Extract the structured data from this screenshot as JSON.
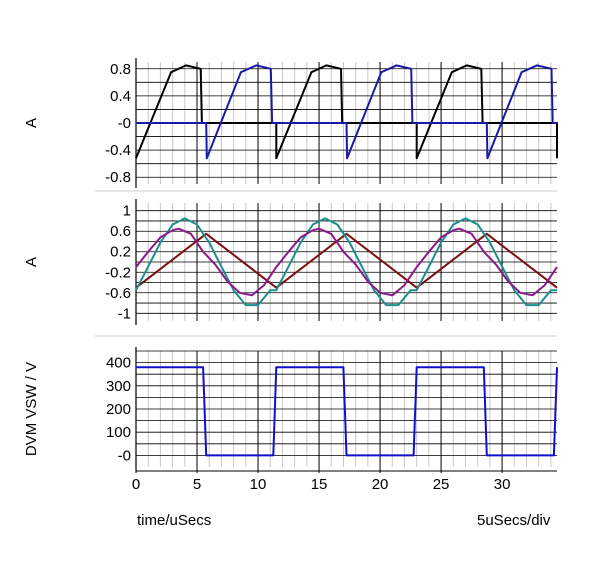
{
  "chart_data": {
    "type": "line",
    "x_axis": {
      "label": "time/uSecs",
      "units_per_div": "5uSecs/div",
      "range": [
        0,
        34.5
      ],
      "ticks": [
        0,
        5,
        10,
        15,
        20,
        25,
        30
      ],
      "tick_labels": [
        "0",
        "5",
        "10",
        "15",
        "20",
        "25",
        "30"
      ],
      "minor_grid_step": 1
    },
    "panels": [
      {
        "ylabel": "A",
        "ylim": [
          -0.9,
          0.9
        ],
        "yticks": [
          0.8,
          0.4,
          0,
          -0.4,
          -0.8
        ],
        "ytick_labels": [
          "0.8",
          "0.4",
          "-0",
          "-0.4",
          "-0.8"
        ],
        "grid_step": 0.2,
        "period": 11.5,
        "series": [
          {
            "color": "#000000",
            "kind": "switch_on",
            "values": [
              [
                0,
                -0.52
              ],
              [
                2.875,
                0.75
              ],
              [
                4.1,
                0.85
              ],
              [
                5.3,
                0.8
              ],
              [
                5.4,
                0.0
              ],
              [
                5.75,
                0.0
              ],
              [
                11.5,
                0.0
              ]
            ]
          },
          {
            "color": "#1a1aa8",
            "kind": "switch_off",
            "values": [
              [
                0,
                0.0
              ],
              [
                5.75,
                0.0
              ],
              [
                5.8,
                -0.52
              ],
              [
                8.6,
                0.75
              ],
              [
                9.85,
                0.85
              ],
              [
                11.05,
                0.8
              ],
              [
                11.15,
                0.0
              ],
              [
                11.5,
                0.0
              ]
            ]
          }
        ]
      },
      {
        "ylabel": "A",
        "ylim": [
          -1.15,
          1.15
        ],
        "yticks": [
          1,
          0.6,
          0.2,
          -0.2,
          -0.6,
          -1
        ],
        "ytick_labels": [
          "1",
          "0.6",
          "0.2",
          "-0.2",
          "-0.6",
          "-1"
        ],
        "grid_step": 0.2,
        "period": 11.5,
        "series": [
          {
            "color": "#7b1010",
            "kind": "triangle",
            "values": [
              [
                0,
                -0.5
              ],
              [
                5.75,
                0.55
              ],
              [
                11.5,
                -0.5
              ]
            ]
          },
          {
            "color": "#1a8f8c",
            "kind": "sine",
            "values": [
              [
                0,
                -0.55
              ],
              [
                1,
                -0.09
              ],
              [
                2,
                0.38
              ],
              [
                3,
                0.73
              ],
              [
                4,
                0.85
              ],
              [
                5,
                0.73
              ],
              [
                6,
                0.38
              ],
              [
                7,
                -0.09
              ],
              [
                8,
                -0.55
              ],
              [
                9,
                -0.84
              ],
              [
                10,
                -0.84
              ],
              [
                11,
                -0.55
              ],
              [
                11.5,
                -0.55
              ]
            ]
          },
          {
            "color": "#8a1a8a",
            "kind": "distorted",
            "values": [
              [
                0,
                -0.1
              ],
              [
                1,
                0.2
              ],
              [
                2,
                0.48
              ],
              [
                3,
                0.62
              ],
              [
                3.5,
                0.65
              ],
              [
                4.5,
                0.55
              ],
              [
                5.5,
                0.2
              ],
              [
                6.5,
                -0.05
              ],
              [
                7.5,
                -0.38
              ],
              [
                8.5,
                -0.6
              ],
              [
                9.5,
                -0.65
              ],
              [
                10.5,
                -0.45
              ],
              [
                11.5,
                -0.1
              ]
            ]
          }
        ]
      },
      {
        "ylabel": "DVM VSW / V",
        "ylim": [
          -50,
          450
        ],
        "yticks": [
          400,
          300,
          200,
          100,
          0
        ],
        "ytick_labels": [
          "400",
          "300",
          "200",
          "100",
          "-0"
        ],
        "grid_step": 50,
        "period": 11.5,
        "series": [
          {
            "color": "#1010cc",
            "kind": "square",
            "values": [
              [
                0,
                380
              ],
              [
                5.5,
                380
              ],
              [
                5.75,
                0
              ],
              [
                11.25,
                0
              ],
              [
                11.5,
                380
              ]
            ]
          }
        ]
      }
    ],
    "grid": true,
    "legend": "none"
  }
}
